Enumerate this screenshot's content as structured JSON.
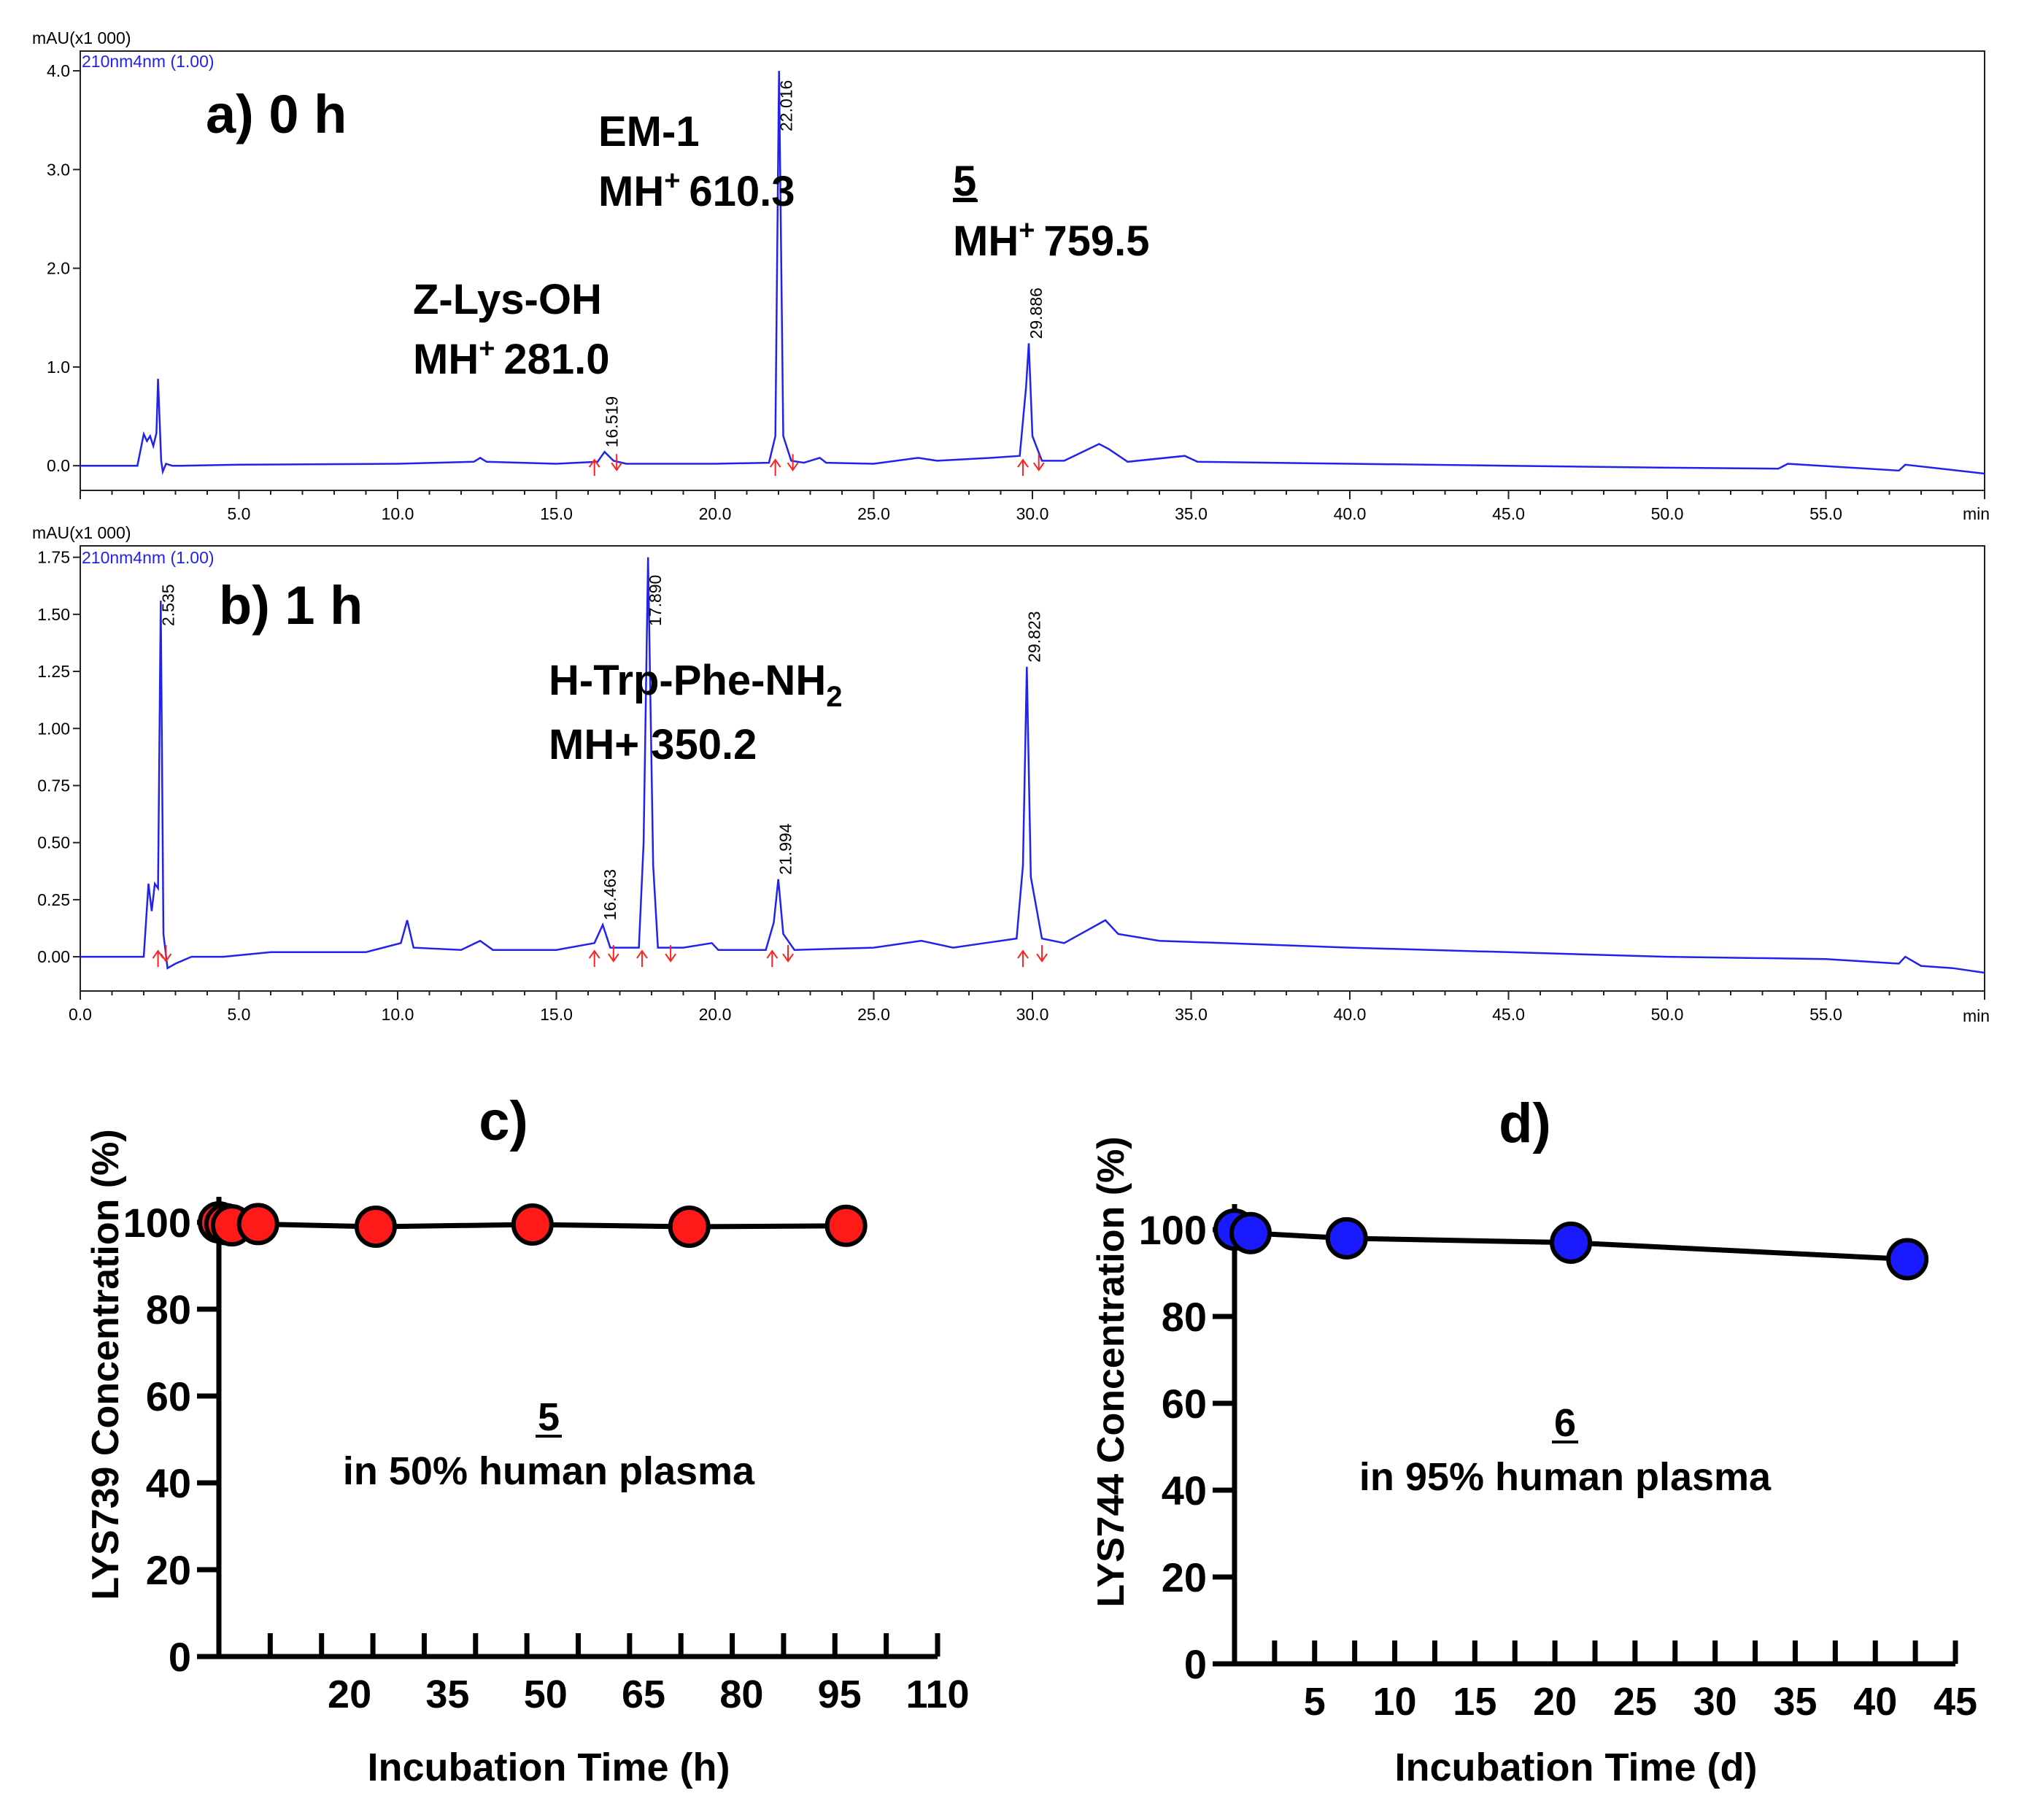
{
  "colors": {
    "trace": "#2222ee",
    "marker": "#ff2020",
    "c_points": "#ff1a1a",
    "d_points": "#1a1aff"
  },
  "chart_data": [
    {
      "type": "line",
      "panel_label": "a) 0 h",
      "y_unit": "mAU(x1 000)",
      "detector": "210nm4nm (1.00)",
      "x_unit": "min",
      "xlim": [
        0,
        60
      ],
      "ylim": [
        -0.25,
        4.2
      ],
      "x_ticks": [
        "5.0",
        "10.0",
        "15.0",
        "20.0",
        "25.0",
        "30.0",
        "35.0",
        "40.0",
        "45.0",
        "50.0",
        "55.0"
      ],
      "y_ticks": [
        "0.0",
        "1.0",
        "2.0",
        "3.0",
        "4.0"
      ],
      "peak_labels": [
        "16.519",
        "22.016",
        "29.886"
      ],
      "annotations": {
        "z_lys_name": "Z-Lys-OH",
        "z_lys_mh": "MH",
        "z_lys_mass": "281.0",
        "em1_name": "EM-1",
        "em1_mh": "MH",
        "em1_mass": "610.3",
        "cmp5_name": "5",
        "cmp5_mh": "MH",
        "cmp5_mass": "759.5",
        "charge": "+"
      },
      "x": [
        0,
        1.8,
        2.0,
        2.1,
        2.2,
        2.3,
        2.4,
        2.45,
        2.55,
        2.6,
        2.7,
        2.9,
        3.2,
        5,
        10,
        12.4,
        12.6,
        12.8,
        15,
        16.3,
        16.52,
        16.8,
        17.2,
        20,
        21.7,
        21.9,
        22.016,
        22.15,
        22.4,
        22.8,
        23.3,
        23.5,
        25,
        26.4,
        27,
        28.7,
        29.6,
        29.8,
        29.886,
        30.0,
        30.3,
        31,
        32.1,
        32.4,
        33,
        34.8,
        35.2,
        40,
        45,
        50,
        53.5,
        53.8,
        57.3,
        57.5,
        60
      ],
      "y": [
        0,
        0,
        0.32,
        0.25,
        0.3,
        0.2,
        0.33,
        0.88,
        0.05,
        -0.06,
        0.02,
        0.0,
        0.0,
        0.01,
        0.02,
        0.04,
        0.08,
        0.04,
        0.02,
        0.04,
        0.14,
        0.05,
        0.02,
        0.02,
        0.03,
        0.3,
        4.0,
        0.3,
        0.05,
        0.03,
        0.08,
        0.03,
        0.02,
        0.08,
        0.05,
        0.08,
        0.1,
        0.8,
        1.24,
        0.3,
        0.05,
        0.05,
        0.22,
        0.17,
        0.04,
        0.1,
        0.04,
        0.02,
        0.0,
        -0.02,
        -0.03,
        0.02,
        -0.05,
        0.01,
        -0.08
      ]
    },
    {
      "type": "line",
      "panel_label": "b) 1 h",
      "y_unit": "mAU(x1 000)",
      "detector": "210nm4nm (1.00)",
      "x_unit": "min",
      "xlim": [
        0,
        60
      ],
      "ylim": [
        -0.15,
        1.8
      ],
      "x_ticks": [
        "0.0",
        "5.0",
        "10.0",
        "15.0",
        "20.0",
        "25.0",
        "30.0",
        "35.0",
        "40.0",
        "45.0",
        "50.0",
        "55.0"
      ],
      "y_ticks": [
        "0.00",
        "0.25",
        "0.50",
        "0.75",
        "1.00",
        "1.25",
        "1.50",
        "1.75"
      ],
      "peak_labels": [
        "2.535",
        "16.463",
        "17.890",
        "21.994",
        "29.823"
      ],
      "annotations": {
        "trp_name": "H-Trp-Phe-NH",
        "trp_sub": "2",
        "trp_mass": "MH+ 350.2"
      },
      "x": [
        0,
        2.0,
        2.15,
        2.25,
        2.35,
        2.45,
        2.535,
        2.62,
        2.75,
        3.0,
        3.5,
        4.5,
        6,
        9,
        10.1,
        10.3,
        10.5,
        12,
        12.6,
        13,
        15,
        16.2,
        16.463,
        16.7,
        17.6,
        17.75,
        17.89,
        18.05,
        18.2,
        19,
        19.9,
        20.1,
        21.6,
        21.85,
        21.994,
        22.15,
        22.5,
        25,
        26.5,
        27.5,
        28.5,
        29.5,
        29.7,
        29.823,
        29.95,
        30.3,
        31,
        32.3,
        32.7,
        34,
        40,
        45,
        50,
        55,
        57.3,
        57.5,
        58,
        59,
        60
      ],
      "y": [
        0,
        0,
        0.32,
        0.2,
        0.32,
        0.3,
        1.56,
        0.1,
        -0.05,
        -0.03,
        0.0,
        0.0,
        0.02,
        0.02,
        0.06,
        0.16,
        0.04,
        0.03,
        0.07,
        0.03,
        0.03,
        0.06,
        0.14,
        0.04,
        0.04,
        0.5,
        1.75,
        0.4,
        0.04,
        0.04,
        0.06,
        0.03,
        0.03,
        0.15,
        0.34,
        0.1,
        0.03,
        0.04,
        0.07,
        0.04,
        0.06,
        0.08,
        0.4,
        1.27,
        0.35,
        0.08,
        0.06,
        0.16,
        0.1,
        0.07,
        0.04,
        0.02,
        0.0,
        -0.01,
        -0.03,
        0.0,
        -0.04,
        -0.05,
        -0.07
      ]
    },
    {
      "type": "scatter",
      "panel_label": "c)",
      "ylabel": "LYS739 Concentration (%)",
      "xlabel": "Incubation Time (h)",
      "compound": "5",
      "condition": "in 50% human plasma",
      "xlim": [
        0,
        110
      ],
      "ylim": [
        0,
        100
      ],
      "x_ticks": [
        "20",
        "35",
        "50",
        "65",
        "80",
        "95",
        "110"
      ],
      "y_ticks": [
        "0",
        "20",
        "40",
        "60",
        "80",
        "100"
      ],
      "x": [
        0,
        1,
        2,
        6,
        24,
        48,
        72,
        96
      ],
      "y": [
        100,
        99.6,
        99.3,
        99.6,
        99.0,
        99.5,
        99.0,
        99.2
      ]
    },
    {
      "type": "scatter",
      "panel_label": "d)",
      "ylabel": "LYS744 Concentration (%)",
      "xlabel": "Incubation Time (d)",
      "compound": "6",
      "condition": "in 95% human plasma",
      "xlim": [
        0,
        45
      ],
      "ylim": [
        0,
        100
      ],
      "x_ticks": [
        "5",
        "10",
        "15",
        "20",
        "25",
        "30",
        "35",
        "40",
        "45"
      ],
      "y_ticks": [
        "0",
        "20",
        "40",
        "60",
        "80",
        "100"
      ],
      "x": [
        0,
        1,
        7,
        21,
        42
      ],
      "y": [
        100,
        99.2,
        98.0,
        97.0,
        93.2
      ]
    }
  ]
}
